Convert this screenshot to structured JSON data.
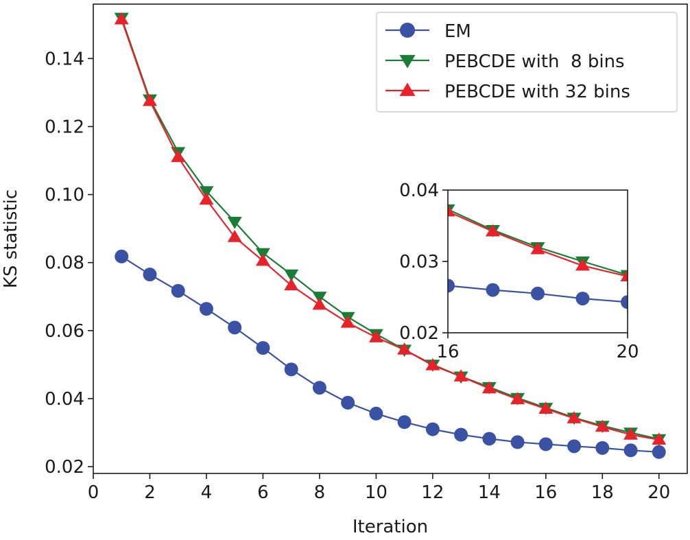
{
  "chart_data": [
    {
      "id": "main",
      "type": "line",
      "title": "",
      "xlabel": "Iteration",
      "ylabel": "KS statistic",
      "xlim": [
        0,
        21
      ],
      "ylim": [
        0.018,
        0.156
      ],
      "xticks": [
        0,
        2,
        4,
        6,
        8,
        10,
        12,
        14,
        16,
        18,
        20
      ],
      "xtick_labels": [
        "0",
        "2",
        "4",
        "6",
        "8",
        "10",
        "12",
        "14",
        "16",
        "18",
        "20"
      ],
      "yticks": [
        0.02,
        0.04,
        0.06,
        0.08,
        0.1,
        0.12,
        0.14
      ],
      "ytick_labels": [
        "0.02",
        "0.04",
        "0.06",
        "0.08",
        "0.10",
        "0.12",
        "0.14"
      ],
      "grid": false,
      "legend_position": "top-right",
      "x": [
        1,
        2,
        3,
        4,
        5,
        6,
        7,
        8,
        9,
        10,
        11,
        12,
        13,
        14,
        15,
        16,
        17,
        18,
        19,
        20
      ],
      "series": [
        {
          "name": "EM",
          "color": "#3a52a3",
          "marker": "circle",
          "values": [
            0.0818,
            0.0765,
            0.0717,
            0.0664,
            0.0609,
            0.0549,
            0.0486,
            0.0432,
            0.0388,
            0.0356,
            0.0331,
            0.031,
            0.0294,
            0.0282,
            0.0272,
            0.0266,
            0.026,
            0.0255,
            0.0248,
            0.0243
          ]
        },
        {
          "name": "PEBCDE with  8 bins",
          "color": "#1a7d36",
          "marker": "triangle-down",
          "values": [
            0.152,
            0.128,
            0.1125,
            0.101,
            0.092,
            0.0828,
            0.0765,
            0.07,
            0.064,
            0.059,
            0.0544,
            0.05,
            0.0465,
            0.0434,
            0.0402,
            0.0373,
            0.0344,
            0.032,
            0.03,
            0.0281
          ]
        },
        {
          "name": "PEBCDE with 32 bins",
          "color": "#e8222a",
          "marker": "triangle-up",
          "values": [
            0.1515,
            0.1275,
            0.111,
            0.0985,
            0.0875,
            0.0805,
            0.0733,
            0.0676,
            0.0623,
            0.058,
            0.0544,
            0.0498,
            0.0465,
            0.043,
            0.0398,
            0.037,
            0.0342,
            0.0317,
            0.0294,
            0.0279
          ]
        }
      ]
    },
    {
      "id": "inset",
      "type": "line",
      "title": "",
      "xlabel": "",
      "ylabel": "",
      "xlim": [
        16,
        20
      ],
      "ylim": [
        0.02,
        0.04
      ],
      "xticks": [
        16,
        20
      ],
      "xtick_labels": [
        "16",
        "20"
      ],
      "yticks": [
        0.02,
        0.03,
        0.04
      ],
      "ytick_labels": [
        "0.02",
        "0.03",
        "0.04"
      ],
      "grid": false,
      "x": [
        16,
        17,
        18,
        19,
        20
      ],
      "series": [
        {
          "name": "EM",
          "color": "#3a52a3",
          "marker": "circle",
          "values": [
            0.0266,
            0.026,
            0.0255,
            0.0248,
            0.0243
          ]
        },
        {
          "name": "PEBCDE with  8 bins",
          "color": "#1a7d36",
          "marker": "triangle-down",
          "values": [
            0.0373,
            0.0344,
            0.032,
            0.03,
            0.0281
          ]
        },
        {
          "name": "PEBCDE with 32 bins",
          "color": "#e8222a",
          "marker": "triangle-up",
          "values": [
            0.037,
            0.0342,
            0.0317,
            0.0294,
            0.0279
          ]
        }
      ]
    }
  ]
}
